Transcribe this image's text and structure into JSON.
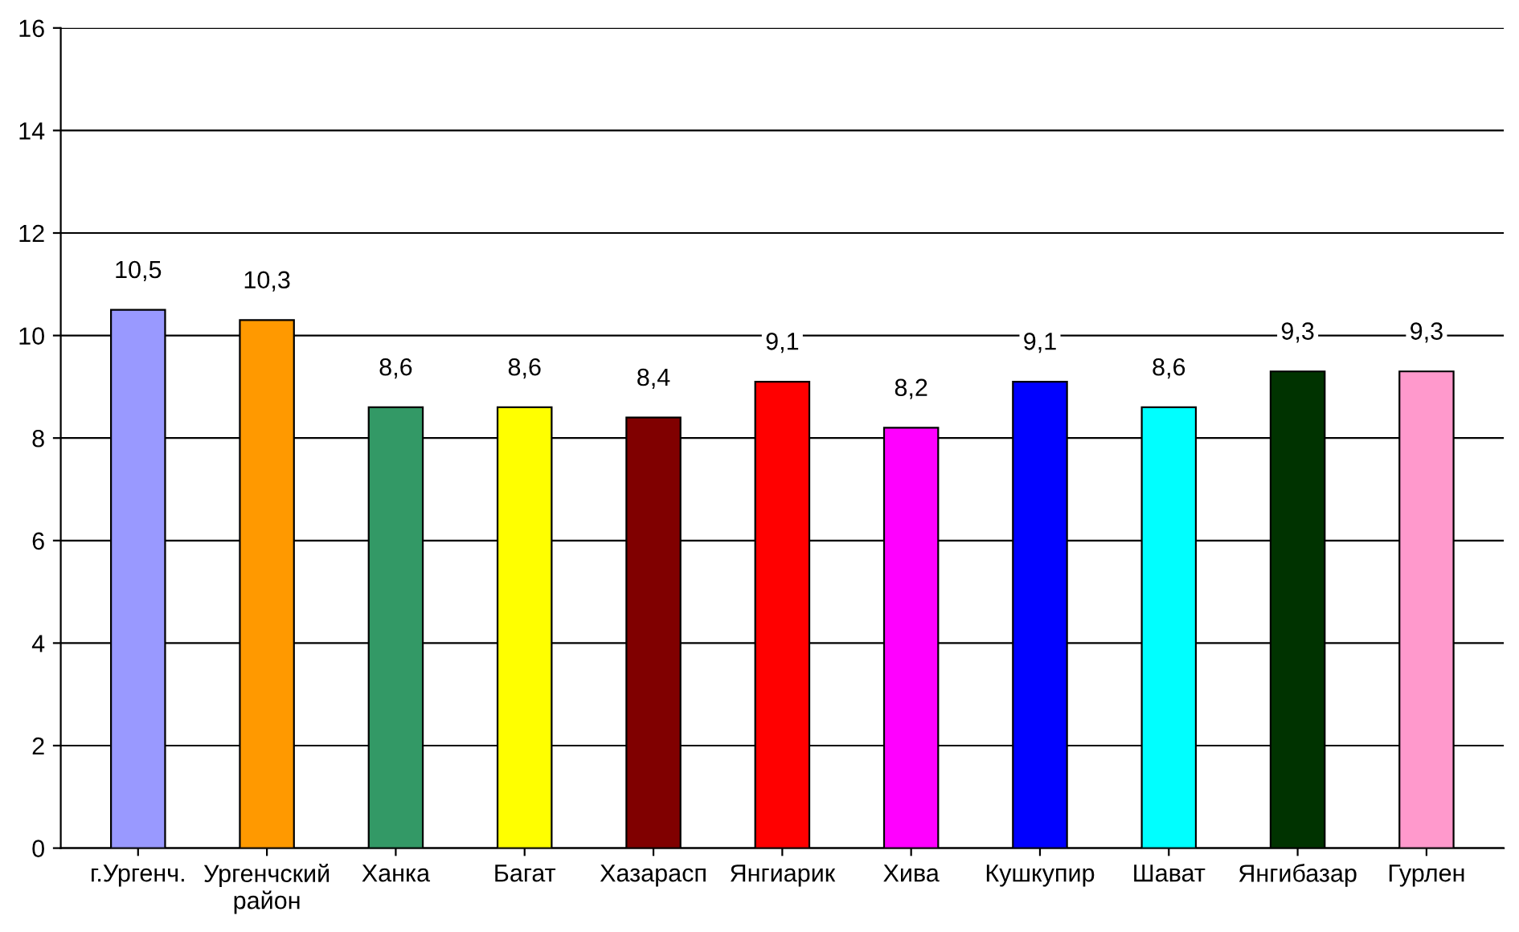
{
  "chart_data": {
    "type": "bar",
    "categories": [
      "г.Ургенч.",
      "Ургенчский район",
      "Ханка",
      "Багат",
      "Хазарасп",
      "Янгиарик",
      "Хива",
      "Кушкупир",
      "Шават",
      "Янгибазар",
      "Гурлен"
    ],
    "values": [
      10.5,
      10.3,
      8.6,
      8.6,
      8.4,
      9.1,
      8.2,
      9.1,
      8.6,
      9.3,
      9.3
    ],
    "value_labels": [
      "10,5",
      "10,3",
      "8,6",
      "8,6",
      "8,4",
      "9,1",
      "8,2",
      "9,1",
      "8,6",
      "9,3",
      "9,3"
    ],
    "colors": [
      "#9999ff",
      "#ff9900",
      "#339966",
      "#ffff00",
      "#800000",
      "#ff0000",
      "#ff00ff",
      "#0000ff",
      "#00ffff",
      "#003300",
      "#ff99cc"
    ],
    "ylim": [
      0,
      16
    ],
    "yticks": [
      0,
      2,
      4,
      6,
      8,
      10,
      12,
      14,
      16
    ],
    "grid": "y"
  }
}
